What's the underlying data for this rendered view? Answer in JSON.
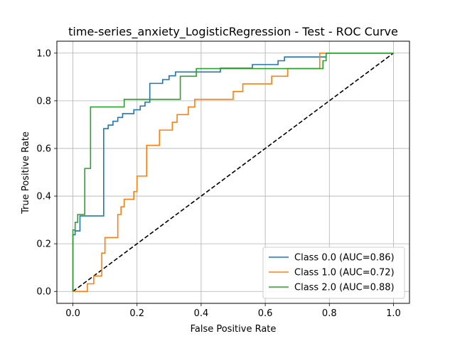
{
  "chart_data": {
    "type": "line",
    "title": "time-series_anxiety_LogisticRegression - Test - ROC Curve",
    "xlabel": "False Positive Rate",
    "ylabel": "True Positive Rate",
    "xlim": [
      -0.05,
      1.05
    ],
    "ylim": [
      -0.05,
      1.05
    ],
    "xticks": [
      0.0,
      0.2,
      0.4,
      0.6,
      0.8,
      1.0
    ],
    "yticks": [
      0.0,
      0.2,
      0.4,
      0.6,
      0.8,
      1.0
    ],
    "xtick_labels": [
      "0.0",
      "0.2",
      "0.4",
      "0.6",
      "0.8",
      "1.0"
    ],
    "ytick_labels": [
      "0.0",
      "0.2",
      "0.4",
      "0.6",
      "0.8",
      "1.0"
    ],
    "grid": true,
    "legend_position": "lower-right",
    "diagonal": {
      "x": [
        0,
        1
      ],
      "y": [
        0,
        1
      ],
      "color": "#000000",
      "style": "dashed"
    },
    "series": [
      {
        "name": "Class 0.0 (AUC=0.86)",
        "color": "#1f77b4",
        "x": [
          0.0,
          0.0,
          0.007,
          0.007,
          0.022,
          0.022,
          0.035,
          0.035,
          0.096,
          0.096,
          0.11,
          0.11,
          0.125,
          0.125,
          0.14,
          0.14,
          0.155,
          0.155,
          0.19,
          0.19,
          0.21,
          0.21,
          0.225,
          0.225,
          0.24,
          0.24,
          0.28,
          0.28,
          0.3,
          0.3,
          0.32,
          0.32,
          0.46,
          0.46,
          0.56,
          0.56,
          0.64,
          0.64,
          0.66,
          0.66,
          0.68,
          0.68,
          0.79,
          0.79,
          1.0
        ],
        "y": [
          0.0,
          0.238,
          0.238,
          0.254,
          0.254,
          0.317,
          0.317,
          0.317,
          0.317,
          0.683,
          0.683,
          0.698,
          0.698,
          0.714,
          0.714,
          0.73,
          0.73,
          0.746,
          0.746,
          0.762,
          0.762,
          0.778,
          0.778,
          0.794,
          0.794,
          0.873,
          0.873,
          0.889,
          0.889,
          0.905,
          0.905,
          0.921,
          0.921,
          0.937,
          0.937,
          0.952,
          0.952,
          0.968,
          0.968,
          0.984,
          0.984,
          0.984,
          0.984,
          1.0,
          1.0
        ]
      },
      {
        "name": "Class 1.0 (AUC=0.72)",
        "color": "#ff7f0e",
        "x": [
          0.0,
          0.045,
          0.045,
          0.065,
          0.065,
          0.09,
          0.09,
          0.1,
          0.1,
          0.14,
          0.14,
          0.15,
          0.15,
          0.16,
          0.16,
          0.19,
          0.19,
          0.2,
          0.2,
          0.23,
          0.23,
          0.27,
          0.27,
          0.31,
          0.31,
          0.325,
          0.325,
          0.36,
          0.36,
          0.38,
          0.38,
          0.5,
          0.5,
          0.53,
          0.53,
          0.62,
          0.62,
          0.67,
          0.67,
          0.77,
          0.77,
          1.0
        ],
        "y": [
          0.0,
          0.0,
          0.032,
          0.032,
          0.065,
          0.065,
          0.161,
          0.161,
          0.226,
          0.226,
          0.323,
          0.323,
          0.355,
          0.355,
          0.387,
          0.387,
          0.419,
          0.419,
          0.484,
          0.484,
          0.613,
          0.613,
          0.677,
          0.677,
          0.71,
          0.71,
          0.742,
          0.742,
          0.774,
          0.774,
          0.806,
          0.806,
          0.839,
          0.839,
          0.871,
          0.871,
          0.903,
          0.903,
          0.935,
          0.935,
          1.0,
          1.0
        ]
      },
      {
        "name": "Class 2.0 (AUC=0.88)",
        "color": "#2ca02c",
        "x": [
          0.0,
          0.0,
          0.007,
          0.007,
          0.015,
          0.015,
          0.022,
          0.022,
          0.037,
          0.037,
          0.055,
          0.055,
          0.16,
          0.16,
          0.335,
          0.335,
          0.385,
          0.385,
          0.78,
          0.78,
          0.79,
          0.79,
          1.0
        ],
        "y": [
          0.0,
          0.258,
          0.258,
          0.29,
          0.29,
          0.323,
          0.323,
          0.323,
          0.323,
          0.516,
          0.516,
          0.774,
          0.774,
          0.806,
          0.806,
          0.903,
          0.903,
          0.935,
          0.935,
          0.968,
          0.968,
          1.0,
          1.0
        ]
      }
    ]
  }
}
